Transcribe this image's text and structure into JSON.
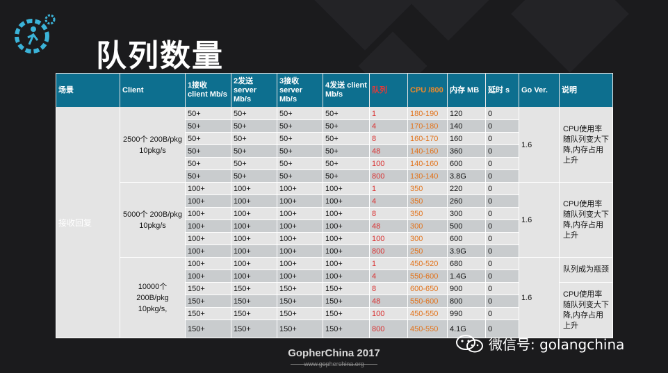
{
  "slide": {
    "title": "队列数量",
    "footer_brand": "GopherChina 2017",
    "footer_url": "www.gopherchina.org",
    "watermark": "微信号: golangchina",
    "logo_icon": "gopher-gear-logo-icon"
  },
  "colors": {
    "header_bg": "#0d6f8f",
    "red_column": "#d93030",
    "orange_column": "#e2731b"
  },
  "table": {
    "headers": {
      "scene": "场景",
      "client": "Client",
      "c1": "1接收 client Mb/s",
      "c2": "2发送 server Mb/s",
      "c3": "3接收 server Mb/s",
      "c4": "4发送 client Mb/s",
      "queue": "队列",
      "cpu": "CPU /800",
      "mem": "内存 MB",
      "delay": "延时 s",
      "go": "Go Ver.",
      "desc": "说明"
    },
    "scene": "接收回复",
    "groups": [
      {
        "client": "2500个 200B/pkg 10pkg/s",
        "go": "1.6",
        "note": "CPU使用率随队列变大下降,内存占用上升",
        "rows": [
          [
            "50+",
            "50+",
            "50+",
            "50+",
            "1",
            "180-190",
            "120",
            "0"
          ],
          [
            "50+",
            "50+",
            "50+",
            "50+",
            "4",
            "170-180",
            "140",
            "0"
          ],
          [
            "50+",
            "50+",
            "50+",
            "50+",
            "8",
            "160-170",
            "160",
            "0"
          ],
          [
            "50+",
            "50+",
            "50+",
            "50+",
            "48",
            "140-160",
            "360",
            "0"
          ],
          [
            "50+",
            "50+",
            "50+",
            "50+",
            "100",
            "140-160",
            "600",
            "0"
          ],
          [
            "50+",
            "50+",
            "50+",
            "50+",
            "800",
            "130-140",
            "3.8G",
            "0"
          ]
        ]
      },
      {
        "client": "5000个 200B/pkg 10pkg/s",
        "go": "1.6",
        "note": "CPU使用率随队列变大下降,内存占用上升",
        "rows": [
          [
            "100+",
            "100+",
            "100+",
            "100+",
            "1",
            "350",
            "220",
            "0"
          ],
          [
            "100+",
            "100+",
            "100+",
            "100+",
            "4",
            "350",
            "260",
            "0"
          ],
          [
            "100+",
            "100+",
            "100+",
            "100+",
            "8",
            "350",
            "300",
            "0"
          ],
          [
            "100+",
            "100+",
            "100+",
            "100+",
            "48",
            "300",
            "500",
            "0"
          ],
          [
            "100+",
            "100+",
            "100+",
            "100+",
            "100",
            "300",
            "600",
            "0"
          ],
          [
            "100+",
            "100+",
            "100+",
            "100+",
            "800",
            "250",
            "3.9G",
            "0"
          ]
        ]
      },
      {
        "client": "10000个 200B/pkg 10pkg/s,",
        "go": "1.6",
        "note_top": "队列成为瓶颈",
        "note": "CPU使用率随队列变大下降,内存占用上升",
        "rows": [
          [
            "100+",
            "100+",
            "100+",
            "100+",
            "1",
            "450-520",
            "680",
            "0"
          ],
          [
            "100+",
            "100+",
            "100+",
            "100+",
            "4",
            "550-600",
            "1.4G",
            "0"
          ],
          [
            "150+",
            "150+",
            "150+",
            "150+",
            "8",
            "600-650",
            "900",
            "0"
          ],
          [
            "150+",
            "150+",
            "150+",
            "150+",
            "48",
            "550-600",
            "800",
            "0"
          ],
          [
            "150+",
            "150+",
            "150+",
            "150+",
            "100",
            "450-550",
            "990",
            "0"
          ],
          [
            "150+",
            "150+",
            "150+",
            "150+",
            "800",
            "450-550",
            "4.1G",
            "0"
          ]
        ]
      }
    ]
  }
}
